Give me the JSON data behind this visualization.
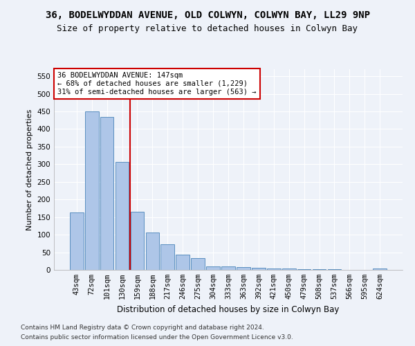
{
  "title1": "36, BODELWYDDAN AVENUE, OLD COLWYN, COLWYN BAY, LL29 9NP",
  "title2": "Size of property relative to detached houses in Colwyn Bay",
  "xlabel": "Distribution of detached houses by size in Colwyn Bay",
  "ylabel": "Number of detached properties",
  "footer1": "Contains HM Land Registry data © Crown copyright and database right 2024.",
  "footer2": "Contains public sector information licensed under the Open Government Licence v3.0.",
  "categories": [
    "43sqm",
    "72sqm",
    "101sqm",
    "130sqm",
    "159sqm",
    "188sqm",
    "217sqm",
    "246sqm",
    "275sqm",
    "304sqm",
    "333sqm",
    "363sqm",
    "392sqm",
    "421sqm",
    "450sqm",
    "479sqm",
    "508sqm",
    "537sqm",
    "566sqm",
    "595sqm",
    "624sqm"
  ],
  "values": [
    163,
    450,
    435,
    307,
    165,
    107,
    73,
    44,
    33,
    10,
    10,
    8,
    5,
    4,
    4,
    2,
    1,
    1,
    0,
    0,
    4
  ],
  "bar_color": "#aec6e8",
  "bar_edge_color": "#5a8fc0",
  "property_line_x": 3.5,
  "annotation_line1": "36 BODELWYDDAN AVENUE: 147sqm",
  "annotation_line2": "← 68% of detached houses are smaller (1,229)",
  "annotation_line3": "31% of semi-detached houses are larger (563) →",
  "annotation_box_color": "#ffffff",
  "annotation_box_edge": "#cc0000",
  "vline_color": "#cc0000",
  "ylim": [
    0,
    570
  ],
  "yticks": [
    0,
    50,
    100,
    150,
    200,
    250,
    300,
    350,
    400,
    450,
    500,
    550
  ],
  "bg_color": "#eef2f9",
  "grid_color": "#ffffff",
  "title1_fontsize": 10,
  "title2_fontsize": 9,
  "xlabel_fontsize": 8.5,
  "ylabel_fontsize": 8,
  "tick_fontsize": 7.5,
  "annot_fontsize": 7.5,
  "footer_fontsize": 6.5
}
